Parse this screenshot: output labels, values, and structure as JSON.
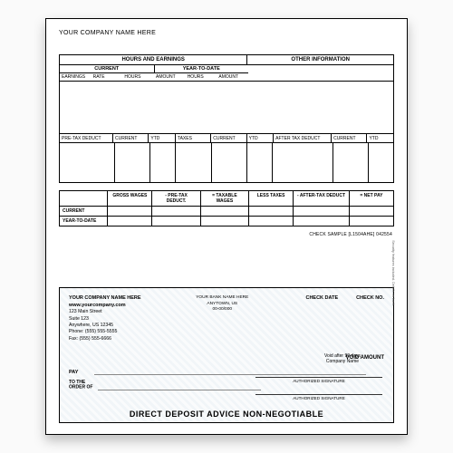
{
  "company_placeholder": "YOUR COMPANY NAME HERE",
  "section_headers": {
    "hours_earnings": "HOURS AND EARNINGS",
    "other_info": "OTHER INFORMATION",
    "current": "CURRENT",
    "ytd": "YEAR-TO-DATE"
  },
  "earnings_cols": {
    "earnings": "EARNINGS",
    "rate": "RATE",
    "hours": "HOURS",
    "amount": "AMOUNT",
    "hours2": "HOURS",
    "amount2": "AMOUNT"
  },
  "deduct_cols": {
    "pretax": "PRE-TAX DEDUCT",
    "current": "CURRENT",
    "ytd": "YTD",
    "taxes": "TAXES",
    "current2": "CURRENT",
    "ytd2": "YTD",
    "aftertax": "AFTER TAX DEDUCT",
    "current3": "CURRENT",
    "ytd3": "YTD"
  },
  "summary": {
    "cols": {
      "gross": "GROSS WAGES",
      "pretax": "- PRE-TAX DEDUCT.",
      "taxable": "= TAXABLE WAGES",
      "lesstax": "LESS TAXES",
      "aftertax": "- AFTER-TAX DEDUCT",
      "netpay": "= NET PAY"
    },
    "rows": {
      "current": "CURRENT",
      "ytd": "YEAR-TO-DATE"
    }
  },
  "sample_tag": "CHECK SAMPLE [L1504AHE] 042554",
  "check": {
    "company": "YOUR COMPANY NAME HERE",
    "website": "www.yourcompany.com",
    "addr1": "123 Main Street",
    "addr2": "Suite 123",
    "citystate": "Anywhere, US 12345",
    "phone": "Phone: (555) 555-5555",
    "fax": "Fax: (555) 555-6666",
    "bank_name": "YOUR BANK NAME HERE",
    "bank_city": "ANYTOWN, US",
    "bank_code": "00-00/000",
    "checkdate": "CHECK DATE",
    "checkno": "CHECK NO.",
    "voidamount": "VOID AMOUNT",
    "pay": "PAY",
    "tothe": "TO THE",
    "orderof": "ORDER OF",
    "voidnote1": "Void after 90 days",
    "voidnote2": "Company Name",
    "sig_label": "AUTHORIZED SIGNATURE",
    "dda": "DIRECT DEPOSIT ADVICE   NON-NEGOTIABLE",
    "security_edge": "Security features included. Details on back."
  },
  "colors": {
    "paper": "#ffffff",
    "border": "#000000",
    "check_tint": "#7aa0be"
  }
}
